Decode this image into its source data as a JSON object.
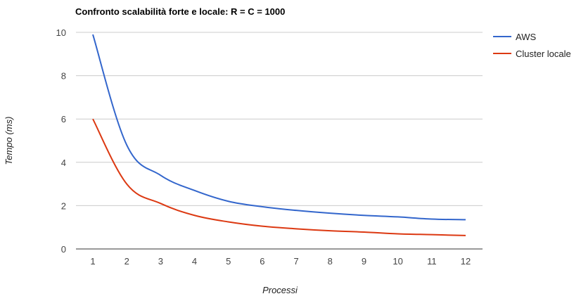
{
  "chart_data": {
    "type": "line",
    "title": "Confronto scalabilità forte e locale: R = C = 1000",
    "xlabel": "Processi",
    "ylabel": "Tempo (ms)",
    "x": [
      1,
      2,
      3,
      4,
      5,
      6,
      7,
      8,
      9,
      10,
      11,
      12
    ],
    "ylim": [
      0,
      10
    ],
    "yticks": [
      0,
      2,
      4,
      6,
      8,
      10
    ],
    "grid": true,
    "legend_position": "right",
    "series": [
      {
        "name": "AWS",
        "color": "#3366cc",
        "values": [
          9.9,
          4.8,
          3.4,
          2.7,
          2.2,
          1.95,
          1.78,
          1.65,
          1.55,
          1.48,
          1.38,
          1.35
        ]
      },
      {
        "name": "Cluster locale",
        "color": "#dc3912",
        "values": [
          6.0,
          3.0,
          2.1,
          1.55,
          1.25,
          1.05,
          0.93,
          0.84,
          0.78,
          0.7,
          0.66,
          0.62
        ]
      }
    ]
  }
}
